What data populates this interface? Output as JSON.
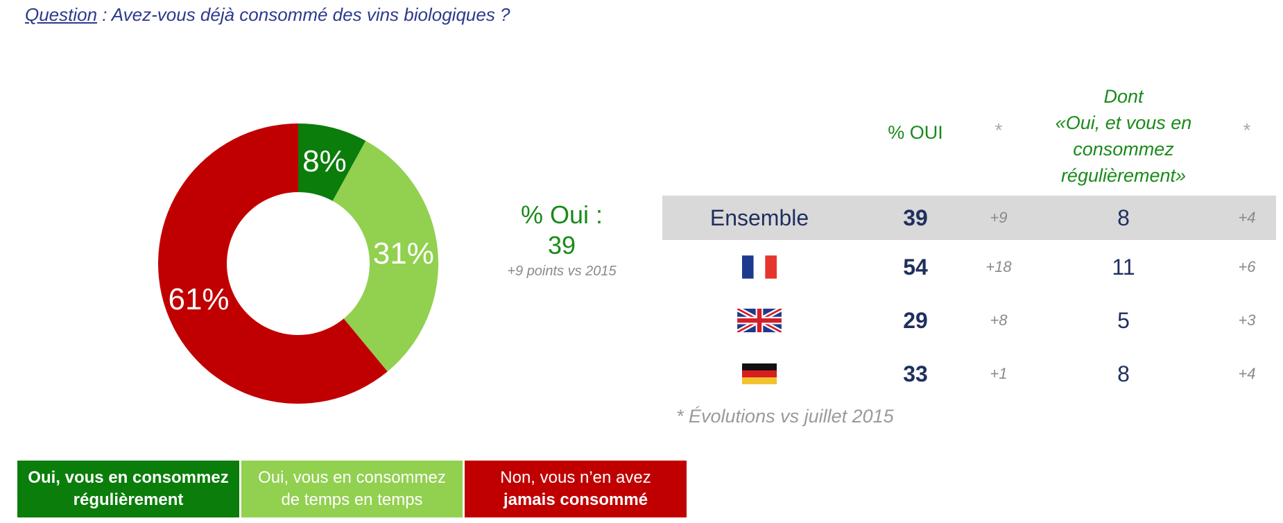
{
  "question": {
    "label": "Question",
    "text": " : Avez-vous déjà consommé des vins biologiques ?"
  },
  "chart_data": {
    "type": "pie",
    "donut": true,
    "slices": [
      {
        "label": "Oui, vous en consommez régulièrement",
        "value": 8,
        "display": "8%",
        "color": "#0a7d0a"
      },
      {
        "label": "Oui, vous en consommez de temps en temps",
        "value": 31,
        "display": "31%",
        "color": "#92d050"
      },
      {
        "label": "Non, vous n’en avez jamais consommé",
        "value": 61,
        "display": "61%",
        "color": "#c00000"
      }
    ]
  },
  "summary": {
    "title": "% Oui :",
    "value": "39",
    "note": "+9 points vs 2015"
  },
  "table": {
    "headers": {
      "oui": "% OUI",
      "star": "*",
      "dont": [
        "Dont",
        "«Oui, et vous en",
        "consommez",
        "régulièrement»"
      ]
    },
    "rows": [
      {
        "name": "Ensemble",
        "flag": "",
        "yes": "39",
        "evo1": "+9",
        "reg": "8",
        "evo2": "+4"
      },
      {
        "name": "",
        "flag": "france-flag-icon",
        "yes": "54",
        "evo1": "+18",
        "reg": "11",
        "evo2": "+6"
      },
      {
        "name": "",
        "flag": "uk-flag-icon",
        "yes": "29",
        "evo1": "+8",
        "reg": "5",
        "evo2": "+3"
      },
      {
        "name": "",
        "flag": "germany-flag-icon",
        "yes": "33",
        "evo1": "+1",
        "reg": "8",
        "evo2": "+4"
      }
    ],
    "footnote": "* Évolutions vs juillet 2015"
  },
  "legend": {
    "item1": [
      "Oui, vous en consommez",
      "régulièrement"
    ],
    "item2": [
      "Oui, vous en consommez",
      "de temps en temps"
    ],
    "item3": [
      "Non, vous n’en avez",
      "jamais consommé"
    ]
  }
}
